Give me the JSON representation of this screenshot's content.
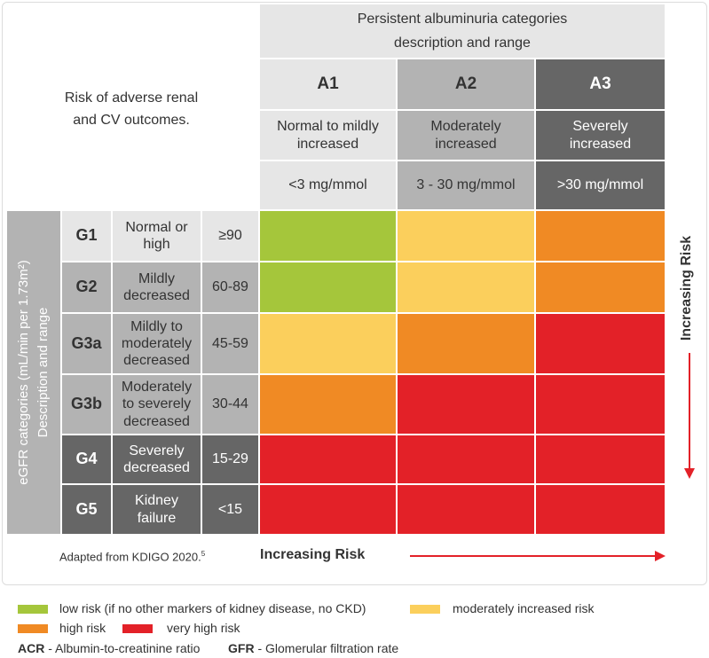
{
  "header": {
    "title_line1": "Persistent albuminuria categories",
    "title_line2": "description and range",
    "risk_line1": "Risk of adverse renal",
    "risk_line2": "and CV outcomes."
  },
  "albuminuria": [
    {
      "code": "A1",
      "desc_line1": "Normal to mildly",
      "desc_line2": "increased",
      "range": "<3 mg/mmol"
    },
    {
      "code": "A2",
      "desc_line1": "Moderately",
      "desc_line2": "increased",
      "range": "3 - 30 mg/mmol"
    },
    {
      "code": "A3",
      "desc_line1": "Severely",
      "desc_line2": "increased",
      "range": ">30 mg/mmol"
    }
  ],
  "egfr_axis": {
    "line1": "eGFR categories (mL/min per 1.73m²)",
    "line2": "Description and range"
  },
  "gfr_rows": [
    {
      "code": "G1",
      "desc": [
        "Normal or",
        "high"
      ],
      "range": "≥90",
      "risks": [
        "low",
        "moderate",
        "high"
      ]
    },
    {
      "code": "G2",
      "desc": [
        "Mildly",
        "decreased"
      ],
      "range": "60-89",
      "risks": [
        "low",
        "moderate",
        "high"
      ]
    },
    {
      "code": "G3a",
      "desc": [
        "Mildly to",
        "moderately",
        "decreased"
      ],
      "range": "45-59",
      "risks": [
        "moderate",
        "high",
        "very_high"
      ]
    },
    {
      "code": "G3b",
      "desc": [
        "Moderately",
        "to severely",
        "decreased"
      ],
      "range": "30-44",
      "risks": [
        "high",
        "very_high",
        "very_high"
      ]
    },
    {
      "code": "G4",
      "desc": [
        "Severely",
        "decreased"
      ],
      "range": "15-29",
      "risks": [
        "very_high",
        "very_high",
        "very_high"
      ]
    },
    {
      "code": "G5",
      "desc": [
        "Kidney",
        "failure"
      ],
      "range": "<15",
      "risks": [
        "very_high",
        "very_high",
        "very_high"
      ]
    }
  ],
  "risk_colors": {
    "low": "#a5c63b",
    "moderate": "#fbcf5c",
    "high": "#f08a24",
    "very_high": "#e32128"
  },
  "increasing_risk_label": "Increasing Risk",
  "footer": {
    "adapted_text": "Adapted from KDIGO 2020.",
    "adapted_sup": "5",
    "increasing_risk": "Increasing Risk"
  },
  "legend": {
    "low": "low risk (if no other markers of kidney disease, no CKD)",
    "moderate": "moderately increased risk",
    "high": "high risk",
    "very_high": "very high risk"
  },
  "abbreviations": [
    {
      "abbr": "ACR",
      "text": " - Albumin-to-creatinine ratio"
    },
    {
      "abbr": "GFR",
      "text": " - Glomerular filtration rate"
    }
  ]
}
